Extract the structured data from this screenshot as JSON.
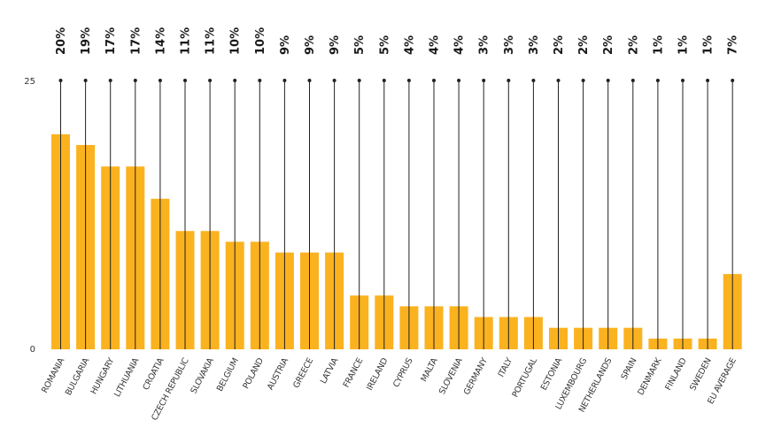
{
  "chart_data": {
    "type": "bar",
    "categories": [
      "ROMANIA",
      "BULGARIA",
      "HUNGARY",
      "LITHUANIA",
      "CROATIA",
      "CZECH REPUBLIC",
      "SLOVAKIA",
      "BELGIUM",
      "POLAND",
      "AUSTRIA",
      "GREECE",
      "LATVIA",
      "FRANCE",
      "IRELAND",
      "CYPRUS",
      "MALTA",
      "SLOVENIA",
      "GERMANY",
      "ITALY",
      "PORTUGAL",
      "ESTONIA",
      "LUXEMBOURG",
      "NETHERLANDS",
      "SPAIN",
      "DENMARK",
      "FINLAND",
      "SWEDEN",
      "EU AVERAGE"
    ],
    "values": [
      20,
      19,
      17,
      17,
      14,
      11,
      11,
      10,
      10,
      9,
      9,
      9,
      5,
      5,
      4,
      4,
      4,
      3,
      3,
      3,
      2,
      2,
      2,
      2,
      1,
      1,
      1,
      7
    ],
    "value_labels": [
      "20%",
      "19%",
      "17%",
      "17%",
      "14%",
      "11%",
      "11%",
      "10%",
      "10%",
      "9%",
      "9%",
      "9%",
      "5%",
      "5%",
      "4%",
      "4%",
      "4%",
      "3%",
      "3%",
      "3%",
      "2%",
      "2%",
      "2%",
      "2%",
      "1%",
      "1%",
      "1%",
      "7%"
    ],
    "y_ticks": [
      "0",
      "25"
    ],
    "ylim": [
      0,
      25
    ],
    "grid": false,
    "bar_color": "#fbb21f"
  }
}
